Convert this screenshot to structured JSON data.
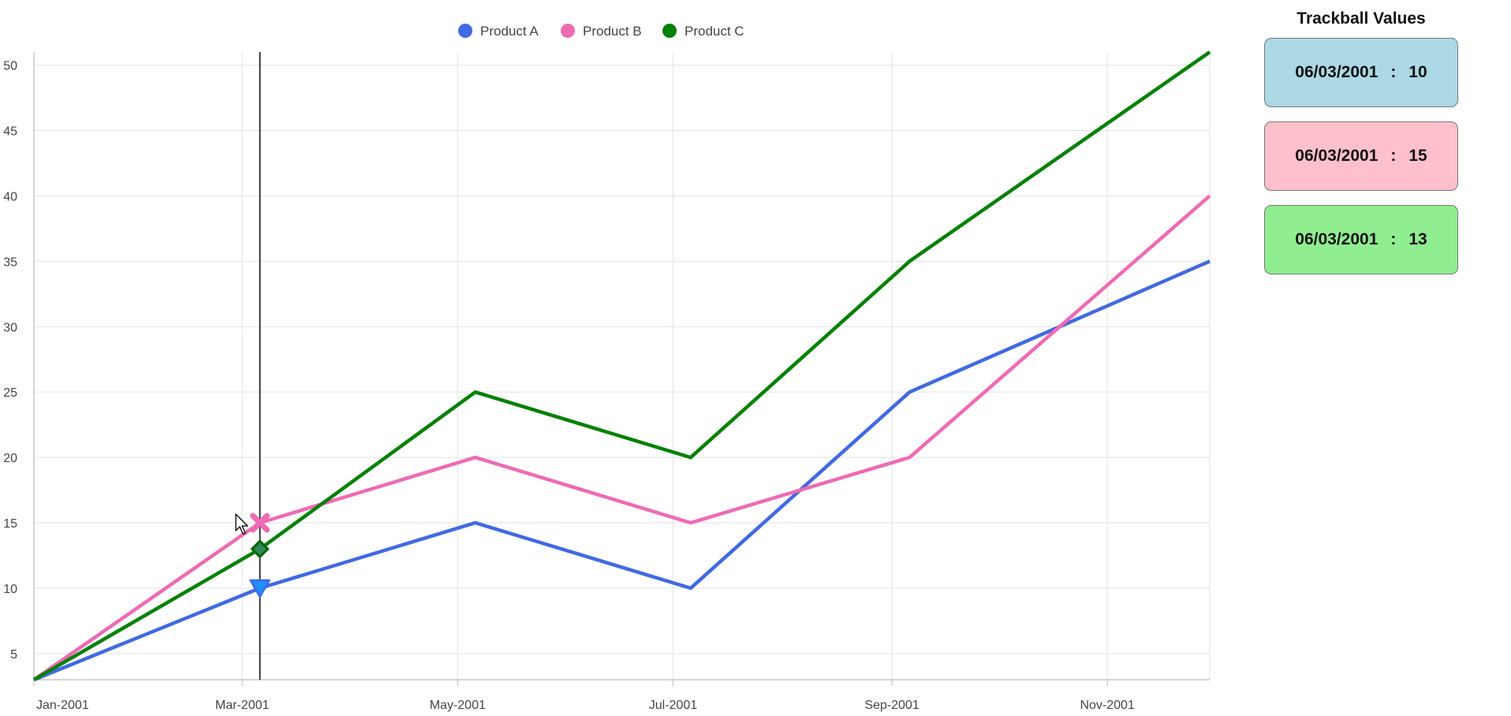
{
  "chart_data": {
    "type": "line",
    "x_ticks": [
      "Jan-2001",
      "Mar-2001",
      "May-2001",
      "Jul-2001",
      "Sep-2001",
      "Nov-2001"
    ],
    "y_ticks": [
      5,
      10,
      15,
      20,
      25,
      30,
      35,
      40,
      45,
      50
    ],
    "ylim": [
      3,
      51
    ],
    "xlim": [
      "2001-01-01",
      "2001-11-30"
    ],
    "grid": true,
    "legend_position": "top-center",
    "series": [
      {
        "name": "Product A",
        "color": "#4169E1",
        "marker": "triangle-down",
        "points": [
          [
            "2001-01-01",
            3
          ],
          [
            "2001-03-06",
            10
          ],
          [
            "2001-05-06",
            15
          ],
          [
            "2001-07-06",
            10
          ],
          [
            "2001-09-06",
            25
          ],
          [
            "2001-11-30",
            35
          ]
        ]
      },
      {
        "name": "Product B",
        "color": "#EE6BB4",
        "marker": "cross",
        "points": [
          [
            "2001-01-01",
            3
          ],
          [
            "2001-03-06",
            15
          ],
          [
            "2001-05-06",
            20
          ],
          [
            "2001-07-06",
            15
          ],
          [
            "2001-09-06",
            20
          ],
          [
            "2001-11-30",
            40
          ]
        ]
      },
      {
        "name": "Product C",
        "color": "#008000",
        "marker": "diamond",
        "points": [
          [
            "2001-01-01",
            3
          ],
          [
            "2001-03-06",
            13
          ],
          [
            "2001-05-06",
            25
          ],
          [
            "2001-07-06",
            20
          ],
          [
            "2001-09-06",
            35
          ],
          [
            "2001-11-30",
            51
          ]
        ]
      }
    ],
    "trackball": {
      "date": "2001-03-06"
    }
  },
  "trackball_panel": {
    "title": "Trackball Values",
    "entries": [
      {
        "date": "06/03/2001",
        "separator": ":",
        "value": "10",
        "color": "#ADD8E6"
      },
      {
        "date": "06/03/2001",
        "separator": ":",
        "value": "15",
        "color": "#FFC0CB"
      },
      {
        "date": "06/03/2001",
        "separator": ":",
        "value": "13",
        "color": "#90EE90"
      }
    ]
  }
}
